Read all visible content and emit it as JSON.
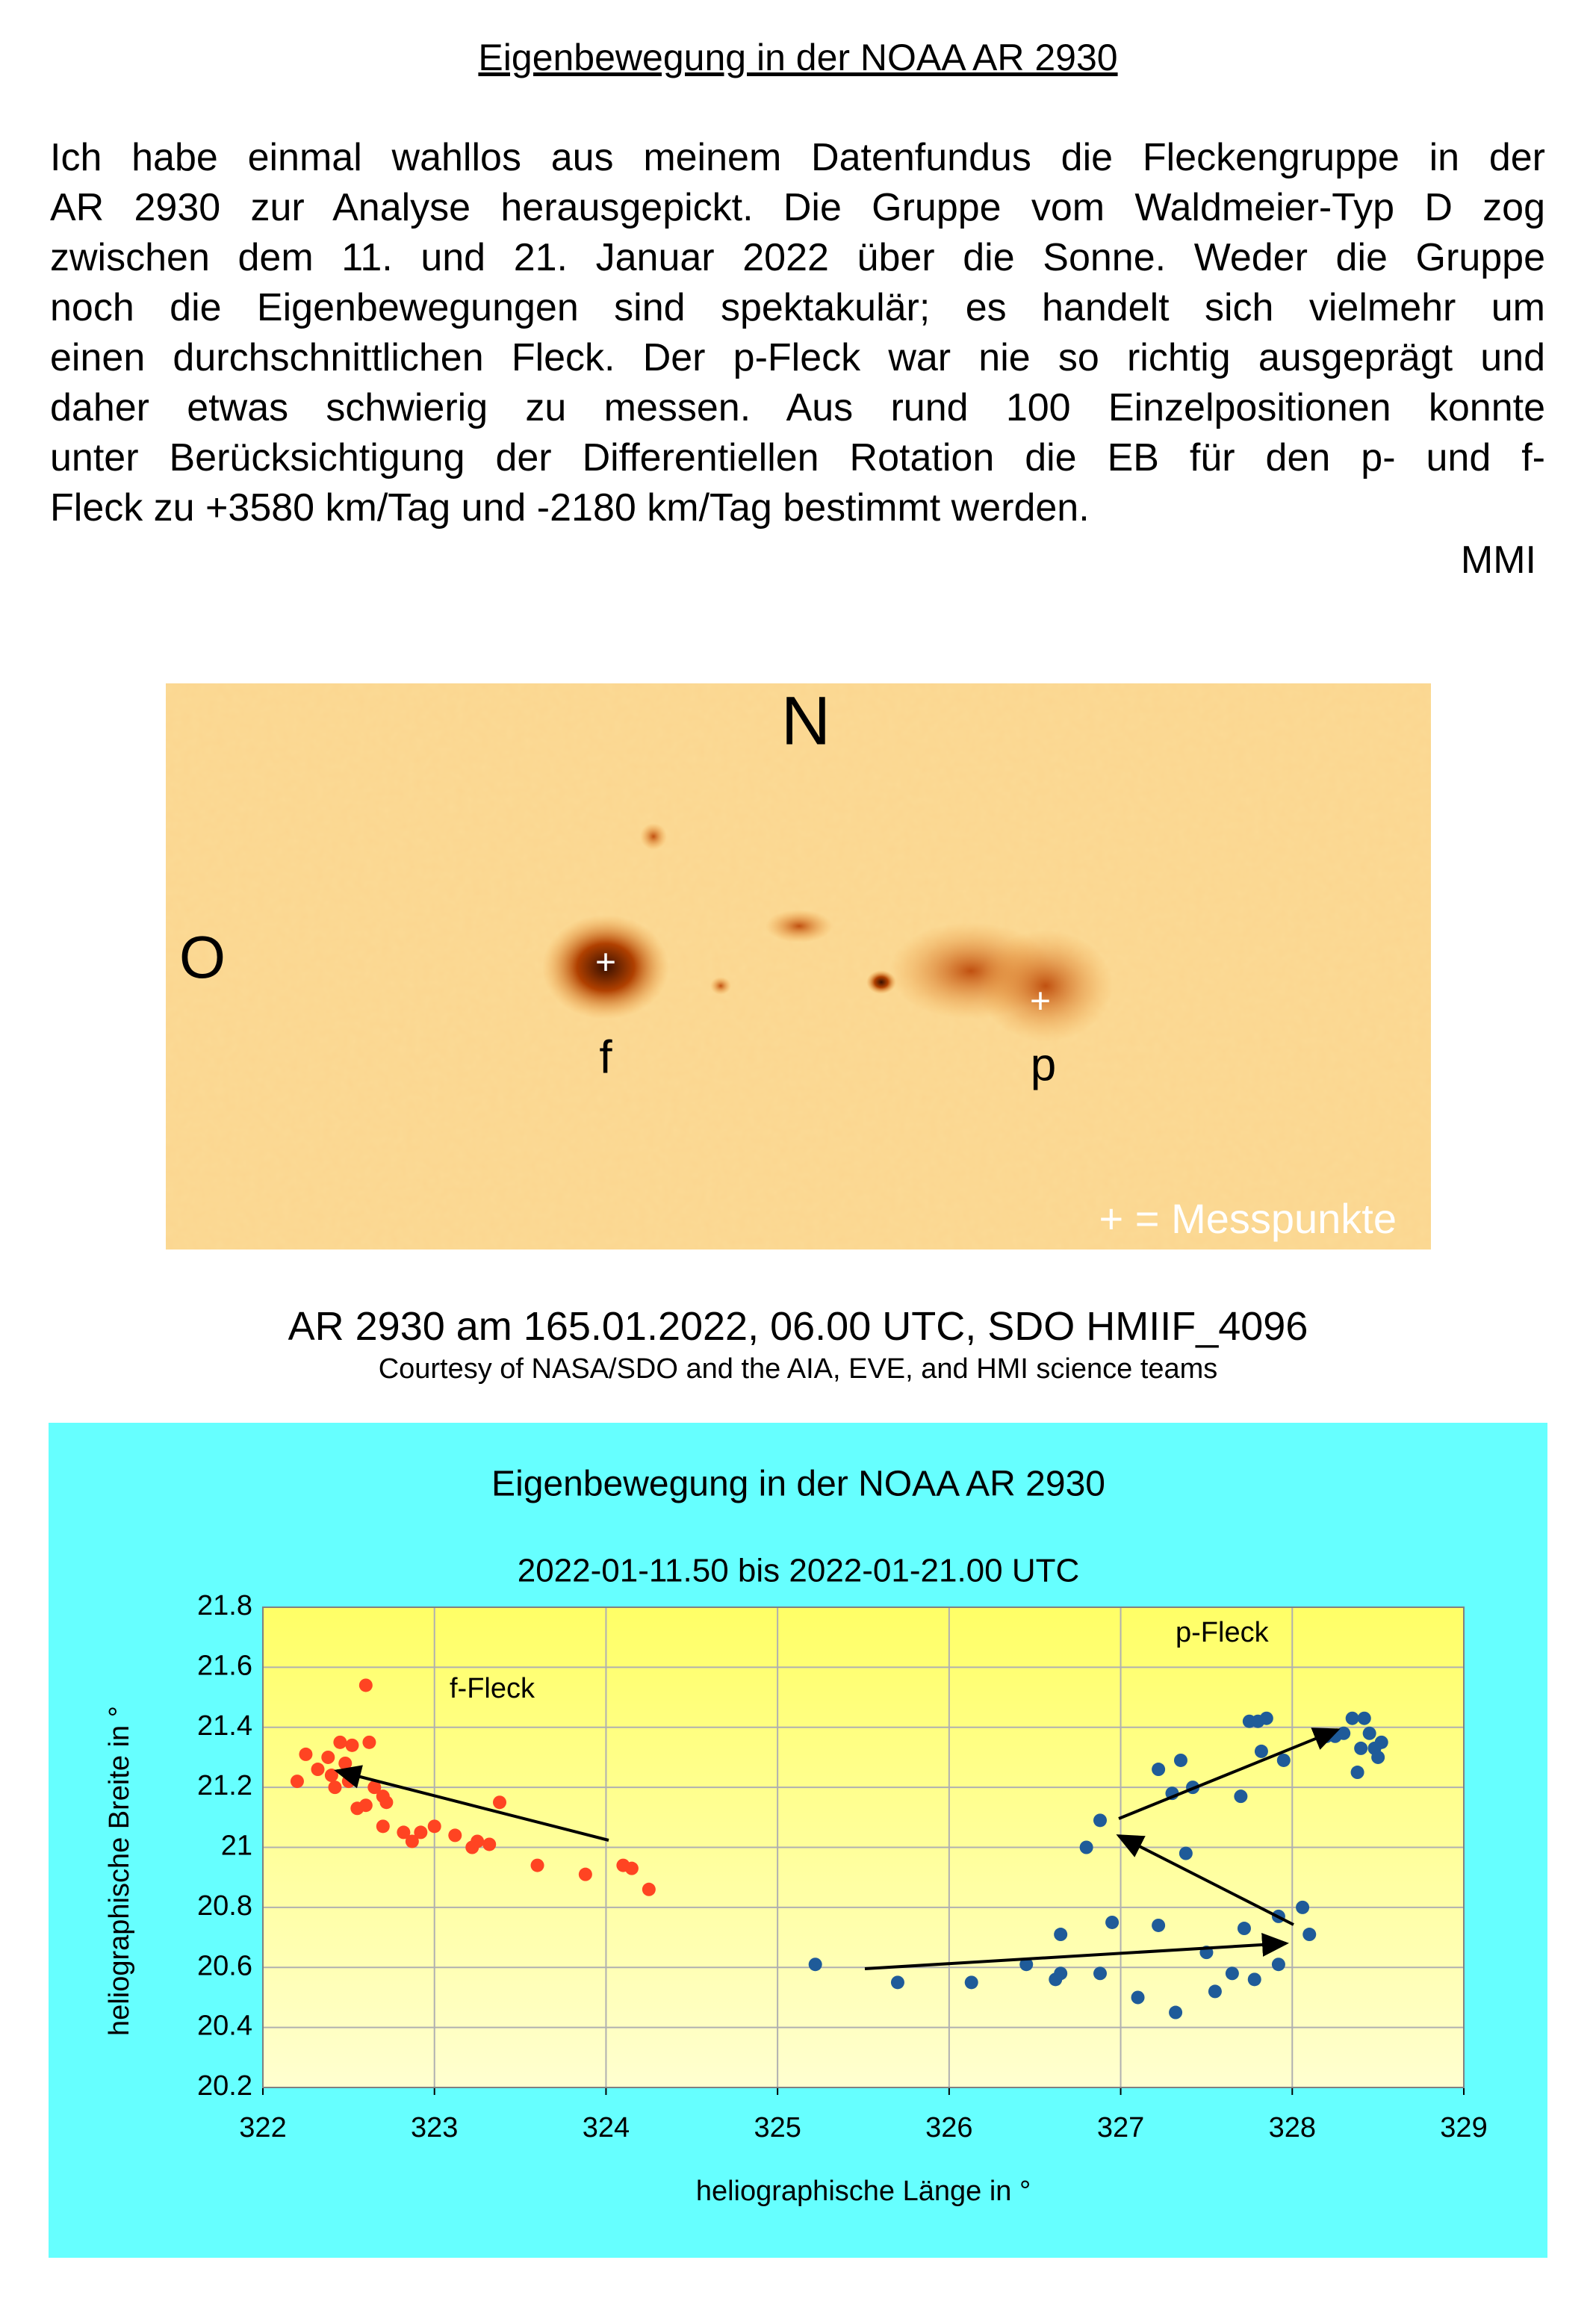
{
  "header": {
    "title": "Eigenbewegung in der NOAA  AR 2930"
  },
  "paragraph_lines": [
    "Ich habe einmal wahllos aus meinem Datenfundus die Fleckengruppe in der",
    "AR 2930 zur Analyse herausgepickt. Die Gruppe vom Waldmeier-Typ D zog",
    "zwischen dem 11. und 21. Januar 2022 über die Sonne. Weder die Gruppe",
    "noch die Eigenbewegungen sind spektakulär; es handelt sich vielmehr um",
    "einen durchschnittlichen Fleck. Der p-Fleck war nie so richtig ausgeprägt und",
    "daher etwas schwierig zu messen. Aus rund 100 Einzelpositionen konnte",
    "unter Berücksichtigung der Differentiellen Rotation die EB für den p- und f-",
    "Fleck zu +3580 km/Tag und -2180 km/Tag bestimmt werden."
  ],
  "signature": "MMI",
  "image": {
    "north": "N",
    "east": "O",
    "f_label": "f",
    "p_label": "p",
    "marker": "+",
    "legend": "+ = Messpunkte"
  },
  "caption": {
    "main": "AR 2930 am 165.01.2022, 06.00 UTC, SDO HMIIF_4096",
    "credit": "Courtesy of NASA/SDO and the AIA, EVE, and HMI science teams"
  },
  "chart_data": {
    "type": "scatter",
    "title": "Eigenbewegung in der NOAA  AR 2930",
    "subtitle": "2022-01-11.50 bis 2022-01-21.00 UTC",
    "x_label": "heliographische Länge in °",
    "y_label": "heliographische Breite in °",
    "xlim": [
      322,
      329
    ],
    "xticks": [
      322,
      323,
      324,
      325,
      326,
      327,
      328,
      329
    ],
    "ylim": [
      20.2,
      21.8
    ],
    "yticks": [
      20.2,
      20.4,
      20.6,
      20.8,
      21,
      21.2,
      21.4,
      21.6,
      21.8
    ],
    "grid": true,
    "series": [
      {
        "name": "f-Fleck",
        "color": "#ff4422",
        "x": [
          322.2,
          322.25,
          322.32,
          322.38,
          322.4,
          322.45,
          322.48,
          322.5,
          322.52,
          322.42,
          322.55,
          322.6,
          322.62,
          322.6,
          322.65,
          322.7,
          322.72,
          322.7,
          322.82,
          322.87,
          322.92,
          323.0,
          323.12,
          323.22,
          323.25,
          323.32,
          323.38,
          323.6,
          323.88,
          324.1,
          324.15,
          324.25
        ],
        "y": [
          21.22,
          21.31,
          21.26,
          21.3,
          21.24,
          21.35,
          21.28,
          21.22,
          21.34,
          21.2,
          21.13,
          21.54,
          21.35,
          21.14,
          21.2,
          21.17,
          21.15,
          21.07,
          21.05,
          21.02,
          21.05,
          21.07,
          21.04,
          21.0,
          21.02,
          21.01,
          21.15,
          20.94,
          20.91,
          20.94,
          20.93,
          20.86
        ]
      },
      {
        "name": "p-Fleck",
        "color": "#1f5b99",
        "x": [
          325.22,
          325.7,
          326.13,
          326.45,
          326.62,
          326.65,
          326.65,
          326.8,
          326.88,
          326.88,
          326.95,
          327.1,
          327.22,
          327.22,
          327.3,
          327.32,
          327.35,
          327.38,
          327.42,
          327.5,
          327.55,
          327.65,
          327.7,
          327.72,
          327.75,
          327.78,
          327.82,
          327.8,
          327.85,
          327.92,
          327.92,
          327.95,
          328.06,
          328.1,
          328.2,
          328.25,
          328.3,
          328.35,
          328.38,
          328.4,
          328.42,
          328.45,
          328.48,
          328.5,
          328.52
        ],
        "y": [
          20.61,
          20.55,
          20.55,
          20.61,
          20.56,
          20.58,
          20.71,
          21.0,
          21.09,
          20.58,
          20.75,
          20.5,
          20.74,
          21.26,
          21.18,
          20.45,
          21.29,
          20.98,
          21.2,
          20.65,
          20.52,
          20.58,
          21.17,
          20.73,
          21.42,
          20.56,
          21.32,
          21.42,
          21.43,
          20.61,
          20.77,
          21.29,
          20.8,
          20.71,
          21.37,
          21.37,
          21.38,
          21.43,
          21.25,
          21.33,
          21.43,
          21.38,
          21.33,
          21.3,
          21.35
        ]
      }
    ]
  }
}
